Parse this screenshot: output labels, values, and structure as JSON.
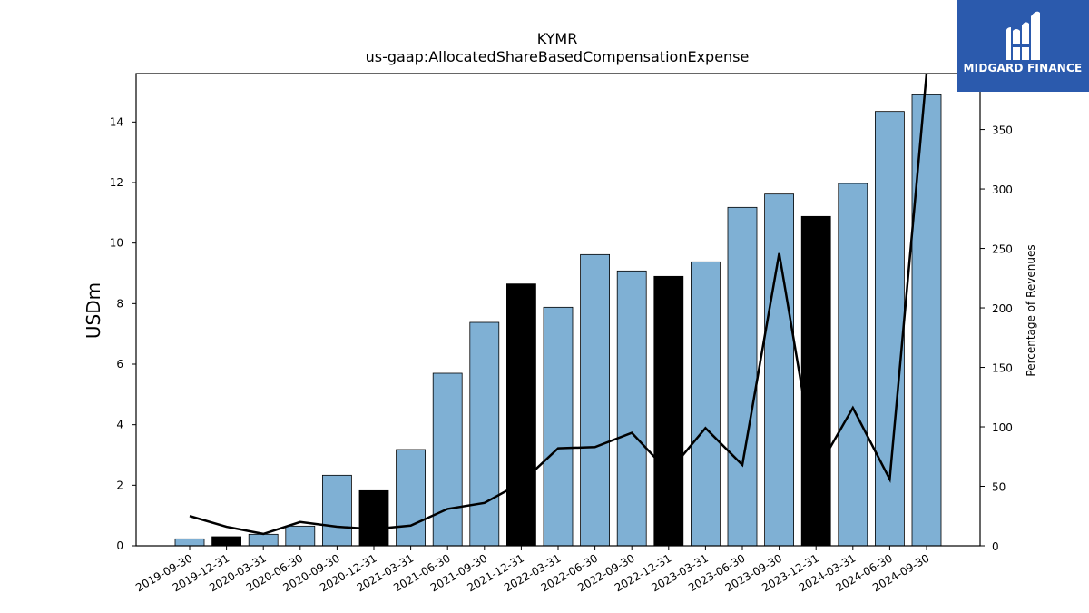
{
  "chart_data": {
    "type": "bar",
    "title": "KYMR",
    "subtitle": "us-gaap:AllocatedShareBasedCompensationExpense",
    "ylabel": "USDm",
    "y2label": "Percentage of Revenues",
    "ylim": [
      0,
      15.6
    ],
    "y2lim": [
      0,
      397
    ],
    "yticks": [
      0,
      2,
      4,
      6,
      8,
      10,
      12,
      14
    ],
    "y2ticks": [
      0,
      50,
      100,
      150,
      200,
      250,
      300,
      350
    ],
    "categories": [
      "2019-09-30",
      "2019-12-31",
      "2020-03-31",
      "2020-06-30",
      "2020-09-30",
      "2020-12-31",
      "2021-03-31",
      "2021-06-30",
      "2021-09-30",
      "2021-12-31",
      "2022-03-31",
      "2022-06-30",
      "2022-09-30",
      "2022-12-31",
      "2023-03-31",
      "2023-06-30",
      "2023-09-30",
      "2023-12-31",
      "2024-03-31",
      "2024-06-30",
      "2024-09-30"
    ],
    "values": [
      0.23,
      0.3,
      0.38,
      0.65,
      2.33,
      1.82,
      3.18,
      5.7,
      7.38,
      8.65,
      7.88,
      9.62,
      9.08,
      8.9,
      9.38,
      11.18,
      11.62,
      10.88,
      11.97,
      14.35,
      14.9
    ],
    "bar_highlight": [
      false,
      true,
      false,
      false,
      false,
      true,
      false,
      false,
      false,
      true,
      false,
      false,
      false,
      true,
      false,
      false,
      false,
      true,
      false,
      false,
      false
    ],
    "line_values": [
      25,
      16,
      10,
      20,
      16,
      14,
      17,
      31,
      36,
      53,
      82,
      83,
      95,
      62,
      99,
      68,
      246,
      62,
      116,
      56,
      397
    ],
    "bar_color": "#7fb0d4",
    "highlight_color": "#000000",
    "line_color": "#000000"
  },
  "logo": {
    "text": "MIDGARD FINANCE",
    "bg_color": "#2b5aad"
  }
}
